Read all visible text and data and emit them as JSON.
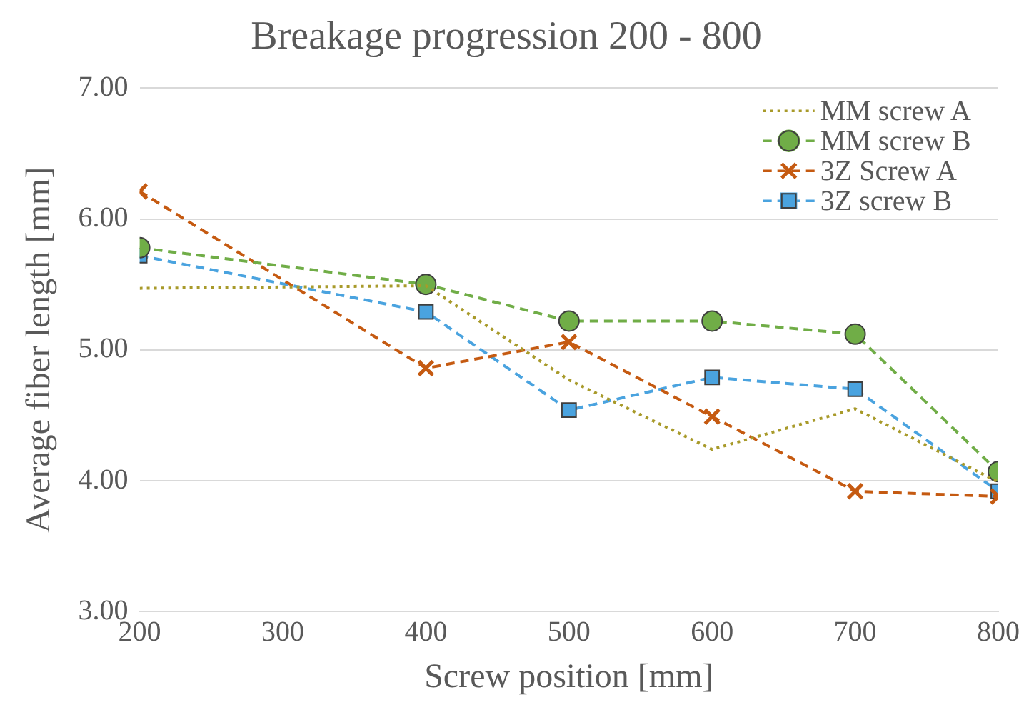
{
  "chart_data": {
    "type": "line",
    "title": "Breakage progression 200 - 800",
    "xlabel": "Screw position [mm]",
    "ylabel": "Average fiber length [mm]",
    "x": [
      200,
      400,
      500,
      600,
      700,
      800
    ],
    "series": [
      {
        "name": "MM screw A",
        "color": "#a89a2a",
        "marker": "none",
        "line_style": "dotted",
        "values": [
          5.47,
          5.49,
          4.77,
          4.24,
          4.55,
          3.99
        ]
      },
      {
        "name": "MM screw B",
        "color": "#70ad47",
        "marker": "circle",
        "line_style": "dashed",
        "values": [
          5.78,
          5.5,
          5.22,
          5.22,
          5.12,
          4.07
        ]
      },
      {
        "name": "3Z Screw A",
        "color": "#c55a11",
        "marker": "cross",
        "line_style": "dashed",
        "values": [
          6.21,
          4.86,
          5.06,
          4.49,
          3.92,
          3.88
        ]
      },
      {
        "name": "3Z screw B",
        "color": "#4aa3df",
        "marker": "square",
        "line_style": "dashed",
        "values": [
          5.72,
          5.29,
          4.54,
          4.79,
          4.7,
          3.92
        ]
      }
    ],
    "xlim": [
      200,
      800
    ],
    "xticks": [
      200,
      300,
      400,
      500,
      600,
      700,
      800
    ],
    "ylim": [
      3,
      7
    ],
    "yticks": [
      {
        "value": 3,
        "label": "3.00"
      },
      {
        "value": 4,
        "label": "4.00"
      },
      {
        "value": 5,
        "label": "5.00"
      },
      {
        "value": 6,
        "label": "6.00"
      },
      {
        "value": 7,
        "label": "7.00"
      }
    ],
    "grid": "y",
    "legend": "top right"
  }
}
